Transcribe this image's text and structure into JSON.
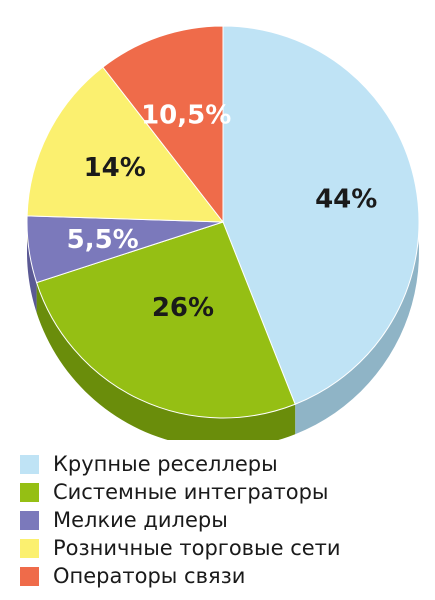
{
  "chart_data": {
    "type": "pie",
    "title": "",
    "legend_position": "bottom",
    "style": "3d",
    "series": [
      {
        "slices": [
          {
            "name": "Крупные реселлеры",
            "value": 44,
            "label": "44%",
            "color": "#bfe3f5",
            "side_color": "#8fb4c6"
          },
          {
            "name": "Системные интеграторы",
            "value": 26,
            "label": "26%",
            "color": "#95bf14",
            "side_color": "#6a8d0b"
          },
          {
            "name": "Мелкие дилеры",
            "value": 5.5,
            "label": "5,5%",
            "color": "#7b79bb",
            "side_color": "#5b5994"
          },
          {
            "name": "Розничные торговые сети",
            "value": 14,
            "label": "14%",
            "color": "#fbf06f",
            "side_color": "#e3d455"
          },
          {
            "name": "Операторы связи",
            "value": 10.5,
            "label": "10,5%",
            "color": "#ef6b4a",
            "side_color": "#c5553a"
          }
        ]
      }
    ]
  }
}
